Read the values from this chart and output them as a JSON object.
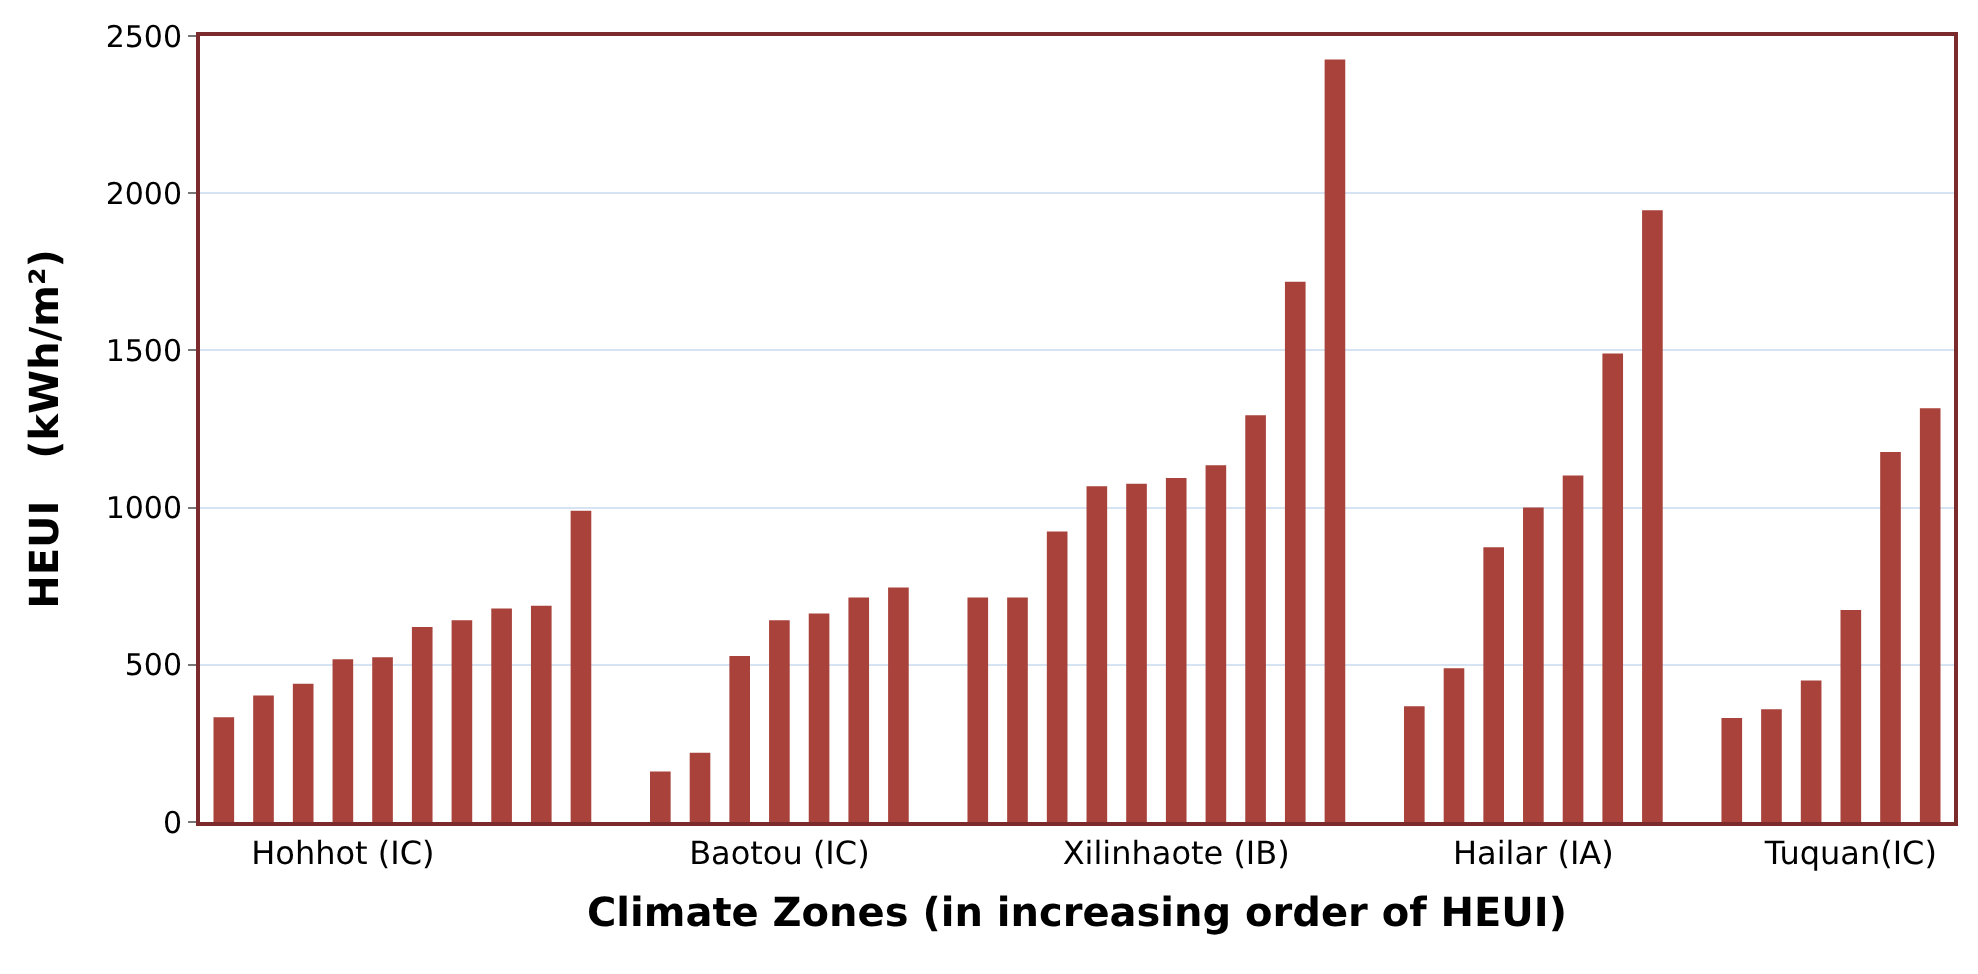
{
  "chart_data": {
    "type": "bar",
    "xlabel": "Climate Zones (in increasing order of HEUI)",
    "ylabel": "HEUI   (kWh/m²)",
    "categories": [
      null,
      null,
      null,
      "Hohhot (IC)",
      null,
      null,
      null,
      null,
      null,
      null,
      null,
      null,
      null,
      null,
      "Baotou (IC)",
      null,
      null,
      null,
      null,
      null,
      null,
      null,
      null,
      null,
      "Xilinhaote (IB)",
      null,
      null,
      null,
      null,
      null,
      null,
      null,
      null,
      "Hailar (IA)",
      null,
      null,
      null,
      null,
      null,
      null,
      null,
      "Tuquan(IC)",
      null,
      null
    ],
    "values": [
      333,
      402,
      440,
      518,
      524,
      620,
      642,
      679,
      688,
      990,
      null,
      161,
      220,
      528,
      642,
      663,
      714,
      746,
      null,
      714,
      714,
      924,
      1068,
      1076,
      1094,
      1135,
      1294,
      1718,
      2425,
      null,
      368,
      489,
      874,
      1000,
      1102,
      1490,
      1946,
      null,
      331,
      359,
      450,
      674,
      1177,
      1316
    ],
    "color": "#a8423a",
    "ylim": [
      0,
      2500
    ],
    "yticks": [
      0,
      500,
      1000,
      1500,
      2000,
      2500
    ],
    "grid": "y"
  }
}
